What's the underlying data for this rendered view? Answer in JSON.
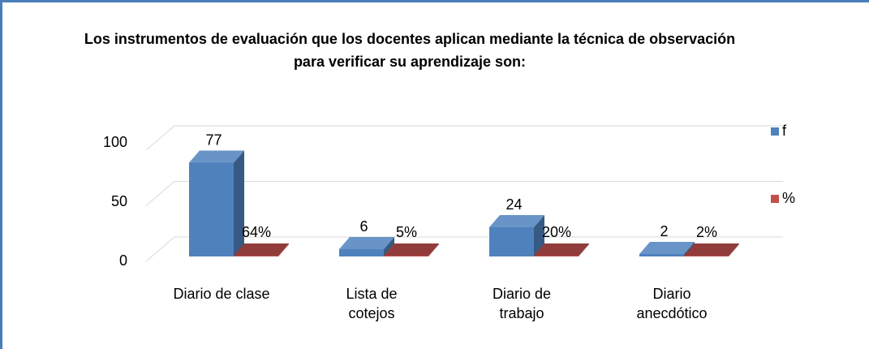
{
  "chart_data": {
    "type": "bar3d",
    "title": "Los instrumentos de evaluación que los docentes aplican mediante la técnica de observación para verificar su aprendizaje son:",
    "categories": [
      "Diario de clase",
      "Lista de cotejos",
      "Diario de trabajo",
      "Diario anecdótico"
    ],
    "series": [
      {
        "name": "f",
        "color": "#4f81bd",
        "values": [
          77,
          6,
          24,
          2
        ]
      },
      {
        "name": "%",
        "color": "#c0504d",
        "values": [
          0.64,
          0.05,
          0.2,
          0.02
        ],
        "value_labels": [
          "64%",
          "5%",
          "20%",
          "2%"
        ]
      }
    ],
    "ylim": [
      0,
      100
    ],
    "yticks": [
      0,
      50,
      100
    ],
    "grid": true,
    "legend": "right"
  }
}
